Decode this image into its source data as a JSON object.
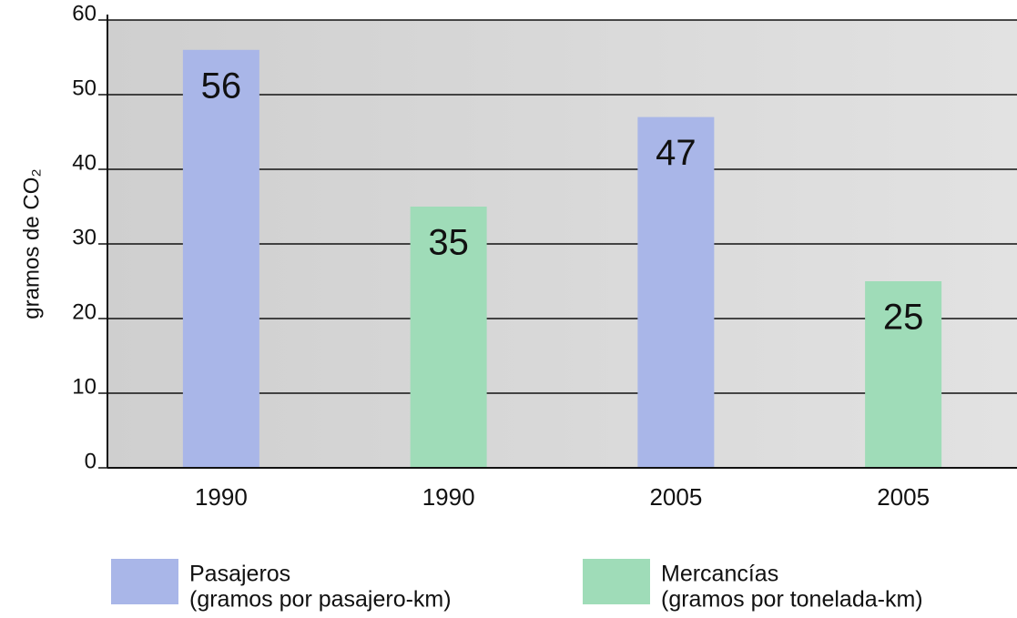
{
  "chart_data": {
    "type": "bar",
    "ylabel": "gramos de CO₂",
    "categories": [
      "1990",
      "1990",
      "2005",
      "2005"
    ],
    "series": [
      {
        "name": "Pasajeros",
        "description": "(gramos por pasajero-km)",
        "color": "#a9b6e8",
        "values": [
          56,
          null,
          47,
          null
        ]
      },
      {
        "name": "Mercancías",
        "description": "(gramos por tonelada-km)",
        "color": "#9fdcb8",
        "values": [
          null,
          35,
          null,
          25
        ]
      }
    ],
    "ylim": [
      0,
      60
    ],
    "yticks": [
      0,
      10,
      20,
      30,
      40,
      50,
      60
    ],
    "grid": true
  }
}
